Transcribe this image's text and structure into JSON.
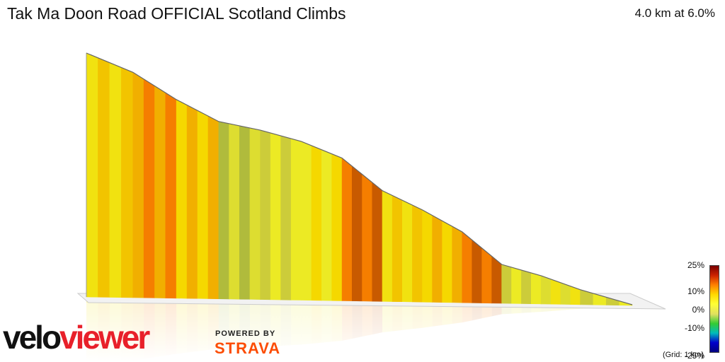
{
  "header": {
    "title": "Tak Ma Doon Road OFFICIAL Scotland Climbs",
    "stats": "4.0 km at 6.0%"
  },
  "branding": {
    "logo_part1": "velo",
    "logo_part2": "viewer",
    "powered_by": "POWERED BY",
    "strava": "STRAVA"
  },
  "legend": {
    "labels": [
      "25%",
      "10%",
      "0%",
      "-10%",
      "-25%"
    ],
    "grid_note": "(Grid: 1 km)",
    "colors": [
      "#7a0000",
      "#cc2200",
      "#ff7f00",
      "#ffd700",
      "#ffff33",
      "#e0e060",
      "#33cc33",
      "#00bbbb",
      "#0000cc",
      "#000080"
    ]
  },
  "chart_data": {
    "type": "area",
    "title": "Tak Ma Doon Road OFFICIAL Scotland Climbs",
    "xlabel": "",
    "ylabel": "",
    "x_unit": "km",
    "x": [
      0.0,
      0.3,
      0.6,
      0.9,
      1.2,
      1.5,
      1.8,
      2.1,
      2.4,
      2.7,
      3.0,
      3.3,
      3.6,
      4.0
    ],
    "gradient_percent": [
      7,
      10,
      8,
      3,
      4,
      6,
      12,
      7,
      8,
      12,
      4,
      5,
      4,
      3
    ],
    "grid": "1 km",
    "colorbar_range": [
      -25,
      25
    ]
  }
}
